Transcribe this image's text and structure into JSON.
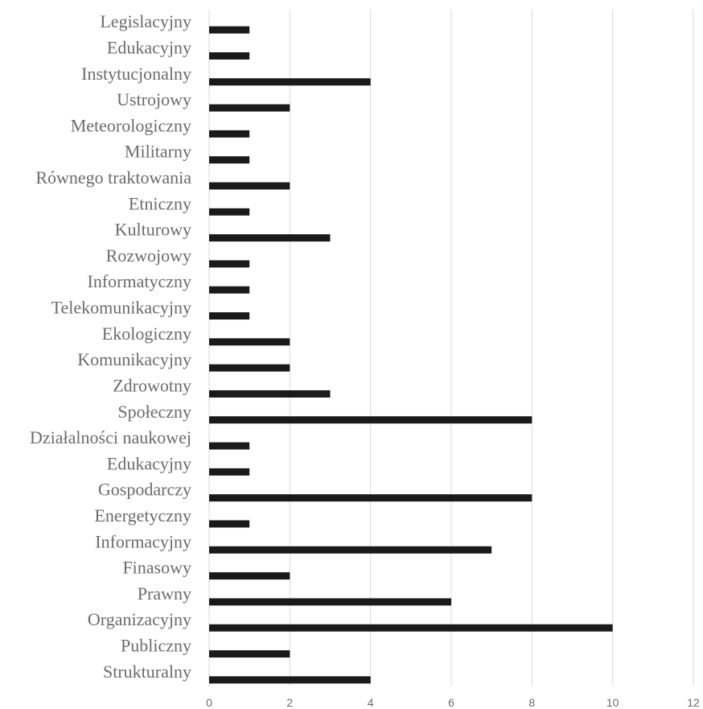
{
  "chart_data": {
    "type": "bar",
    "orientation": "horizontal",
    "categories": [
      "Legislacyjny",
      "Edukacyjny",
      "Instytucjonalny",
      "Ustrojowy",
      "Meteorologiczny",
      "Militarny",
      "Równego traktowania",
      "Etniczny",
      "Kulturowy",
      "Rozwojowy",
      "Informatyczny",
      "Telekomunikacyjny",
      "Ekologiczny",
      "Komunikacyjny",
      "Zdrowotny",
      "Społeczny",
      "Działalności naukowej",
      "Edukacyjny",
      "Gospodarczy",
      "Energetyczny",
      "Informacyjny",
      "Finasowy",
      "Prawny",
      "Organizacyjny",
      "Publiczny",
      "Strukturalny"
    ],
    "values": [
      1,
      1,
      4,
      2,
      1,
      1,
      2,
      1,
      3,
      1,
      1,
      1,
      2,
      2,
      3,
      8,
      1,
      1,
      8,
      1,
      7,
      2,
      6,
      10,
      2,
      4
    ],
    "xlim": [
      0,
      12
    ],
    "xticks": [
      "0",
      "2",
      "4",
      "6",
      "8",
      "10",
      "12"
    ],
    "grid": true,
    "legend": "none",
    "bar_color": "#1a1a1a",
    "grid_color": "#d9d9d9",
    "label_color": "#6b6b6b"
  }
}
